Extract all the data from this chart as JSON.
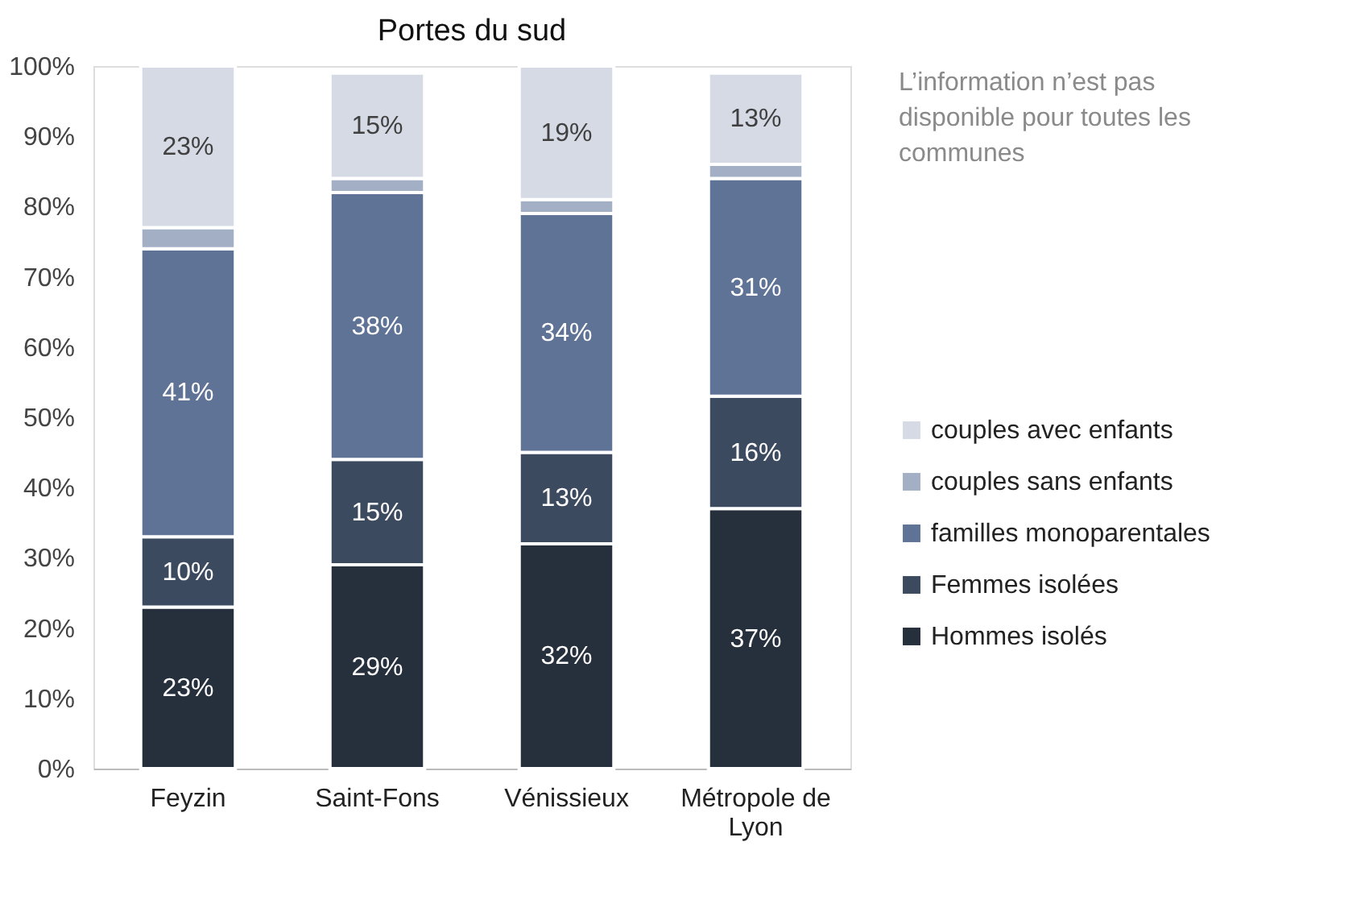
{
  "chart_data": {
    "type": "bar",
    "title": "Portes du sud",
    "stacked": true,
    "categories": [
      "Feyzin",
      "Saint-Fons",
      "Vénissieux",
      "Métropole de Lyon"
    ],
    "series": [
      {
        "name": "Hommes isolés",
        "color": "#262f3c",
        "values": [
          23,
          29,
          32,
          37
        ],
        "value_labels": [
          "23%",
          "29%",
          "32%",
          "37%"
        ]
      },
      {
        "name": "Femmes isolées",
        "color": "#3c4a60",
        "values": [
          10,
          15,
          13,
          16
        ],
        "value_labels": [
          "10%",
          "15%",
          "13%",
          "16%"
        ]
      },
      {
        "name": "familles monoparentales",
        "color": "#5f7396",
        "values": [
          41,
          38,
          34,
          31
        ],
        "value_labels": [
          "41%",
          "38%",
          "34%",
          "31%"
        ]
      },
      {
        "name": "couples sans enfants",
        "color": "#a3afc4",
        "values": [
          3,
          2,
          2,
          2
        ],
        "value_labels": [
          null,
          null,
          null,
          null
        ]
      },
      {
        "name": "couples avec enfants",
        "color": "#d5dae4",
        "values": [
          23,
          15,
          19,
          13
        ],
        "value_labels": [
          "23%",
          "15%",
          "19%",
          "13%"
        ]
      }
    ],
    "ylim": [
      0,
      100
    ],
    "yticks": [
      {
        "value": 0,
        "label": "0%"
      },
      {
        "value": 10,
        "label": "10%"
      },
      {
        "value": 20,
        "label": "20%"
      },
      {
        "value": 30,
        "label": "30%"
      },
      {
        "value": 40,
        "label": "40%"
      },
      {
        "value": 50,
        "label": "50%"
      },
      {
        "value": 60,
        "label": "60%"
      },
      {
        "value": 70,
        "label": "70%"
      },
      {
        "value": 80,
        "label": "80%"
      },
      {
        "value": 90,
        "label": "90%"
      },
      {
        "value": 100,
        "label": "100%"
      }
    ],
    "grid": false,
    "legend": "right",
    "annotations": [
      "L’information n’est pas disponible pour toutes les communes"
    ]
  }
}
